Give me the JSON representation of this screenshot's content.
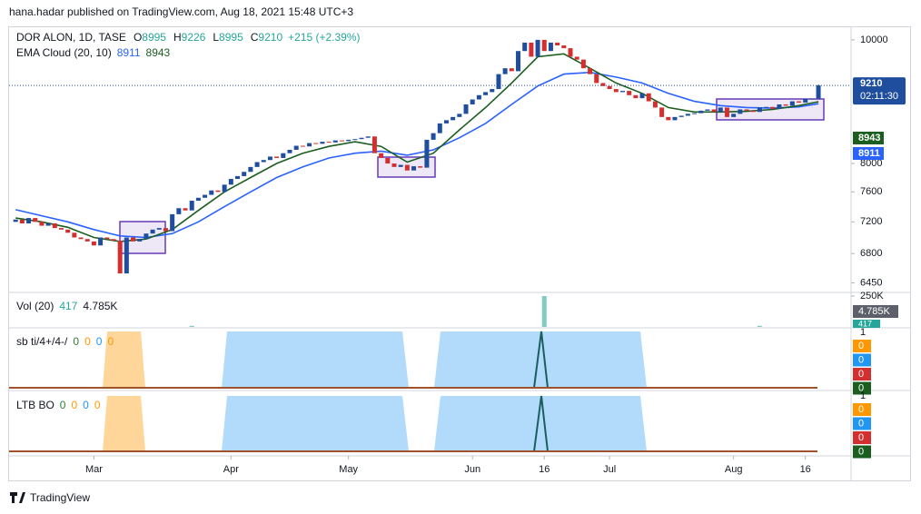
{
  "header": {
    "published": "hana.hadar published on TradingView.com, Aug 18, 2021 15:48 UTC+3",
    "brand": "TradingView"
  },
  "chart_data": {
    "type": "candlestick",
    "symbol": "DOR ALON, 1D, TASE",
    "ohlc_prefixes": [
      "O",
      "H",
      "L",
      "C"
    ],
    "change_label": "+215 (+2.39%)",
    "indicator": "EMA Cloud (20, 10)",
    "countdown": "02:11:30",
    "up_color": "#1f4e9e",
    "down_color": "#d32f2f",
    "log_scale": true,
    "open": [
      7200,
      7230,
      7180,
      7250,
      7200,
      7150,
      7180,
      7120,
      7100,
      7060,
      7000,
      6980,
      6950,
      6900,
      7000,
      6980,
      6960,
      6560,
      7000,
      6950,
      6980,
      7050,
      7100,
      7120,
      7080,
      7300,
      7380,
      7350,
      7480,
      7520,
      7560,
      7620,
      7600,
      7700,
      7780,
      7820,
      7880,
      7950,
      8020,
      8050,
      8100,
      8080,
      8150,
      8200,
      8260,
      8250,
      8300,
      8290,
      8320,
      8310,
      8340,
      8330,
      8350,
      8360,
      8380,
      8400,
      8150,
      8080,
      8000,
      7950,
      7980,
      7900,
      7960,
      7940,
      8350,
      8450,
      8600,
      8650,
      8700,
      8750,
      8900,
      8980,
      9050,
      9100,
      9150,
      9400,
      9500,
      9450,
      9800,
      9950,
      9700,
      10000,
      9800,
      9950,
      9900,
      9850,
      9700,
      9650,
      9500,
      9400,
      9250,
      9200,
      9150,
      9100,
      9120,
      9050,
      9000,
      9080,
      8950,
      8850,
      8700,
      8650,
      8700,
      8720,
      8750,
      8760,
      8800,
      8820,
      8780,
      8850,
      8700,
      8750,
      8820,
      8800,
      8780,
      8850,
      8860,
      8830,
      8900,
      8880,
      8950,
      8930,
      8990,
      8995
    ],
    "close": [
      7230,
      7180,
      7250,
      7200,
      7150,
      7180,
      7120,
      7100,
      7060,
      7000,
      6980,
      6950,
      6900,
      7000,
      6980,
      6960,
      6560,
      7000,
      6950,
      6980,
      7050,
      7100,
      7120,
      7080,
      7300,
      7380,
      7350,
      7480,
      7520,
      7560,
      7620,
      7600,
      7700,
      7780,
      7820,
      7880,
      7950,
      8020,
      8050,
      8100,
      8080,
      8150,
      8200,
      8260,
      8250,
      8300,
      8290,
      8320,
      8310,
      8340,
      8330,
      8350,
      8360,
      8380,
      8400,
      8150,
      8080,
      8000,
      7950,
      7980,
      7900,
      7960,
      7940,
      8350,
      8450,
      8600,
      8650,
      8700,
      8750,
      8900,
      8980,
      9050,
      9100,
      9150,
      9400,
      9500,
      9450,
      9800,
      9950,
      9700,
      10000,
      9800,
      9950,
      9900,
      9850,
      9700,
      9650,
      9500,
      9400,
      9250,
      9200,
      9150,
      9100,
      9120,
      9050,
      9000,
      9080,
      8950,
      8850,
      8700,
      8650,
      8700,
      8720,
      8750,
      8760,
      8800,
      8820,
      8780,
      8850,
      8700,
      8750,
      8820,
      8800,
      8780,
      8850,
      8860,
      8830,
      8900,
      8880,
      8950,
      8930,
      8990,
      8995,
      9210
    ],
    "wick": {
      "index": 123,
      "high": 9226,
      "low": 8995
    },
    "ema_lines": [
      {
        "color": "#2962ff",
        "x": [
          0,
          4,
          8,
          12,
          16,
          20,
          24,
          28,
          32,
          36,
          40,
          44,
          48,
          52,
          56,
          60,
          64,
          68,
          72,
          76,
          80,
          84,
          88,
          92,
          96,
          100,
          104,
          108,
          112,
          116,
          120,
          123
        ],
        "values": [
          7360,
          7280,
          7200,
          7100,
          7020,
          7000,
          7050,
          7200,
          7400,
          7600,
          7800,
          7950,
          8080,
          8150,
          8180,
          8120,
          8200,
          8380,
          8600,
          8900,
          9200,
          9400,
          9430,
          9350,
          9250,
          9080,
          8950,
          8880,
          8850,
          8840,
          8860,
          8911
        ]
      },
      {
        "color": "#1b5e20",
        "x": [
          0,
          4,
          8,
          12,
          16,
          20,
          24,
          28,
          32,
          36,
          40,
          44,
          48,
          52,
          56,
          60,
          64,
          68,
          72,
          76,
          80,
          84,
          88,
          92,
          96,
          100,
          104,
          108,
          112,
          116,
          120,
          123
        ],
        "values": [
          7250,
          7200,
          7130,
          7000,
          6950,
          6980,
          7100,
          7350,
          7600,
          7800,
          8000,
          8150,
          8250,
          8320,
          8250,
          8020,
          8150,
          8500,
          8850,
          9250,
          9700,
          9750,
          9500,
          9250,
          9080,
          8850,
          8780,
          8780,
          8790,
          8820,
          8880,
          8943
        ]
      }
    ],
    "xlim": [
      -1,
      128
    ],
    "xticks": [
      {
        "value": 12,
        "label": "Mar"
      },
      {
        "value": 33,
        "label": "Apr"
      },
      {
        "value": 51,
        "label": "May"
      },
      {
        "value": 70,
        "label": "Jun"
      },
      {
        "value": 81,
        "label": "16"
      },
      {
        "value": 91,
        "label": "Jul"
      },
      {
        "value": 110,
        "label": "Aug"
      },
      {
        "value": 121,
        "label": "16"
      }
    ],
    "ylim": [
      6360,
      10230
    ],
    "yticks": [
      6450,
      6800,
      7200,
      7600,
      8000,
      10000
    ],
    "volume": {
      "title": "Vol (20)",
      "last": 417,
      "average_label": "4.785K",
      "color": "#80cbc4",
      "ylim": [
        0,
        250000
      ],
      "yticks": [
        {
          "value": 250000,
          "label": "250K"
        }
      ],
      "x": [
        27,
        81,
        114
      ],
      "values": [
        9000,
        250000,
        9000
      ]
    },
    "panes": [
      {
        "title": "sb ti/4+/4-/",
        "legend": [
          {
            "value": 0,
            "color": "#2e7d32"
          },
          {
            "value": 0,
            "color": "#ff9800"
          },
          {
            "value": 0,
            "color": "#2196f3"
          },
          {
            "value": 0,
            "color": "#ff9800"
          }
        ],
        "top": 1,
        "tags": [
          {
            "value": 0,
            "color": "#ff9800"
          },
          {
            "value": 0,
            "color": "#2196f3"
          },
          {
            "value": 0,
            "color": "#d32f2f"
          },
          {
            "value": 0,
            "color": "#1b5e20"
          }
        ]
      },
      {
        "title": "LTB BO",
        "legend": [
          {
            "value": 0,
            "color": "#2e7d32"
          },
          {
            "value": 0,
            "color": "#ff9800"
          },
          {
            "value": 0,
            "color": "#2196f3"
          },
          {
            "value": 0,
            "color": "#ff9800"
          }
        ],
        "top": 1,
        "tags": [
          {
            "value": 0,
            "color": "#ff9800"
          },
          {
            "value": 0,
            "color": "#2196f3"
          },
          {
            "value": 0,
            "color": "#d32f2f"
          },
          {
            "value": 0,
            "color": "#1b5e20"
          }
        ]
      }
    ]
  }
}
